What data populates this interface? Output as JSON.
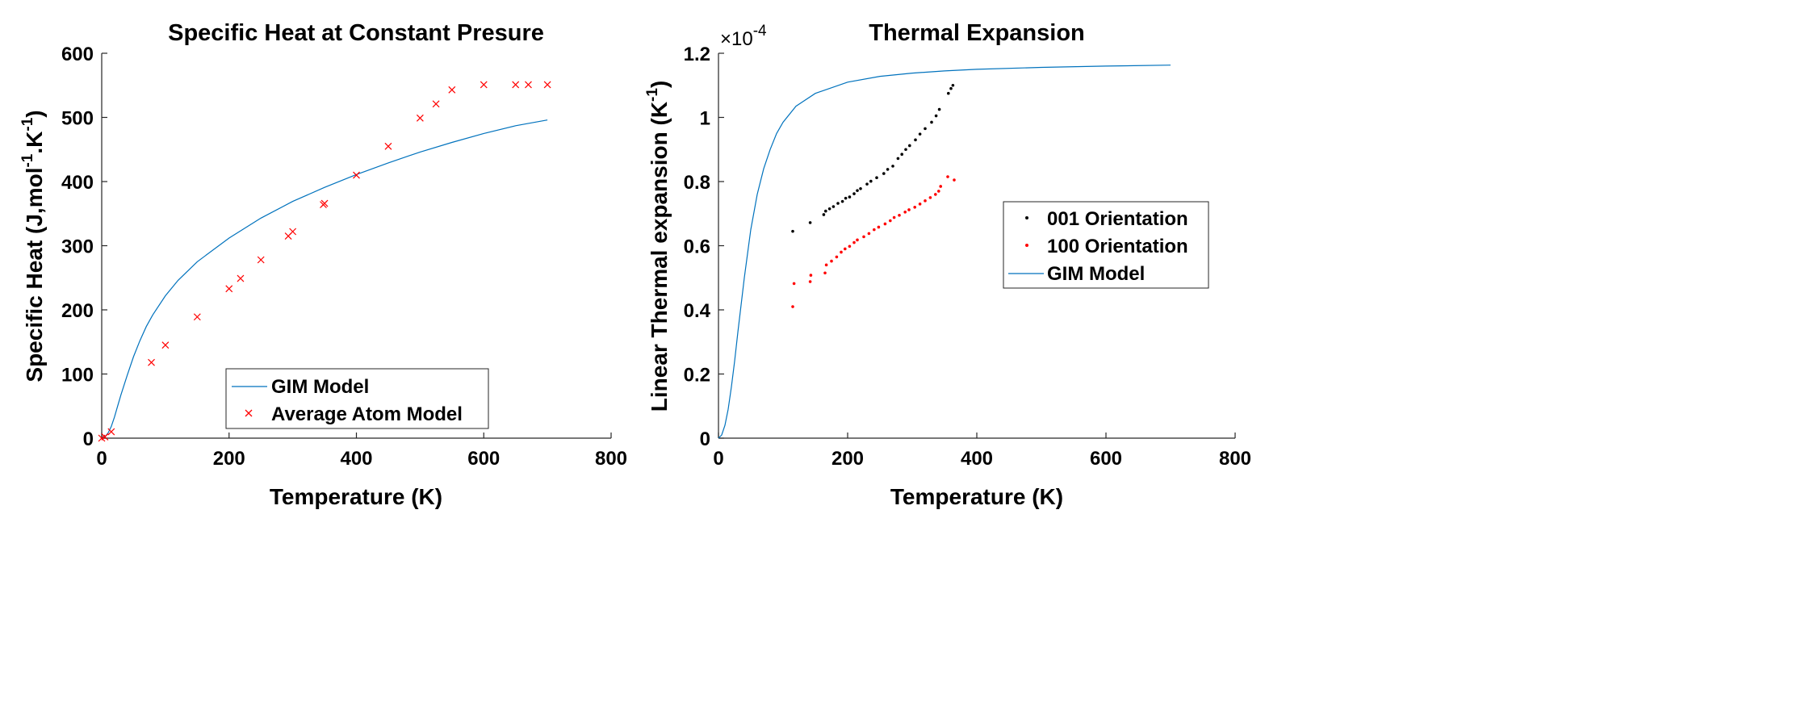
{
  "chart_data": [
    {
      "type": "line",
      "title": "Specific Heat at Constant Presure",
      "xlabel": "Temperature (K)",
      "ylabel": {
        "main": "Specific Heat (J,mol",
        "sup1": "-1",
        "mid": ".K",
        "sup2": "-1",
        "end": ")"
      },
      "xlim": [
        0,
        800
      ],
      "ylim": [
        0,
        600
      ],
      "xticks": [
        0,
        200,
        400,
        600,
        800
      ],
      "yticks": [
        0,
        100,
        200,
        300,
        400,
        500,
        600
      ],
      "grid": false,
      "legend_position": "bottom-right",
      "series": [
        {
          "name": "GIM Model",
          "type": "line",
          "color": "#0072BD",
          "x": [
            0,
            5,
            10,
            15,
            20,
            25,
            30,
            40,
            50,
            60,
            70,
            80,
            100,
            120,
            150,
            200,
            250,
            300,
            350,
            400,
            450,
            500,
            550,
            600,
            650,
            700
          ],
          "y": [
            0,
            2,
            8,
            18,
            33,
            50,
            67,
            98,
            127,
            152,
            174,
            192,
            222,
            246,
            275,
            312,
            343,
            369,
            391,
            411,
            429,
            446,
            461,
            475,
            487,
            496
          ]
        },
        {
          "name": "Average Atom Model",
          "type": "scatter",
          "marker": "x",
          "color": "#FF0000",
          "x": [
            0,
            5,
            15,
            78,
            100,
            150,
            200,
            218,
            250,
            293,
            300,
            348,
            350,
            400,
            450,
            500,
            525,
            550,
            600,
            650,
            670,
            700
          ],
          "y": [
            0,
            2,
            10,
            118,
            145,
            189,
            233,
            249,
            278,
            315,
            322,
            364,
            366,
            410,
            455,
            499,
            521,
            543,
            551,
            551,
            551,
            551
          ]
        }
      ]
    },
    {
      "type": "scatter",
      "title": "Thermal Expansion",
      "xlabel": "Temperature (K)",
      "ylabel": {
        "main": "Linear Thermal expansion (K",
        "sup": "-1",
        "end": ")"
      },
      "exponent": {
        "base": "×10",
        "power": "-4"
      },
      "xlim": [
        0,
        800
      ],
      "ylim": [
        0,
        1.2
      ],
      "xticks": [
        0,
        200,
        400,
        600,
        800
      ],
      "yticks": [
        0,
        0.2,
        0.4,
        0.6,
        0.8,
        1,
        1.2
      ],
      "ytick_labels": [
        "0",
        "0.2",
        "0.4",
        "0.6",
        "0.8",
        "1",
        "1.2"
      ],
      "grid": false,
      "legend_position": "right",
      "series": [
        {
          "name": "001 Orientation",
          "type": "scatter",
          "marker": "dot",
          "color": "#000000",
          "x": [
            115,
            142,
            163,
            166,
            172,
            178,
            185,
            192,
            197,
            203,
            210,
            215,
            220,
            230,
            236,
            245,
            256,
            262,
            270,
            278,
            284,
            290,
            296,
            305,
            312,
            320,
            330,
            337,
            342,
            356,
            360,
            363
          ],
          "y": [
            0.645,
            0.672,
            0.697,
            0.708,
            0.715,
            0.722,
            0.732,
            0.738,
            0.748,
            0.752,
            0.762,
            0.772,
            0.778,
            0.792,
            0.801,
            0.812,
            0.825,
            0.838,
            0.848,
            0.872,
            0.885,
            0.9,
            0.912,
            0.93,
            0.948,
            0.965,
            0.985,
            1.005,
            1.025,
            1.075,
            1.09,
            1.1
          ]
        },
        {
          "name": "100 Orientation",
          "type": "scatter",
          "marker": "dot",
          "color": "#FF0000",
          "x": [
            115,
            117,
            142,
            143,
            165,
            167,
            175,
            183,
            190,
            196,
            203,
            210,
            215,
            225,
            233,
            241,
            248,
            258,
            266,
            272,
            280,
            289,
            295,
            304,
            312,
            320,
            328,
            336,
            341,
            344,
            355,
            365
          ],
          "y": [
            0.41,
            0.482,
            0.488,
            0.508,
            0.515,
            0.54,
            0.552,
            0.565,
            0.58,
            0.59,
            0.598,
            0.61,
            0.618,
            0.628,
            0.638,
            0.65,
            0.658,
            0.668,
            0.678,
            0.688,
            0.695,
            0.705,
            0.712,
            0.72,
            0.73,
            0.74,
            0.75,
            0.76,
            0.77,
            0.785,
            0.815,
            0.805
          ]
        },
        {
          "name": "GIM Model",
          "type": "line",
          "color": "#0072BD",
          "x": [
            0,
            5,
            10,
            15,
            20,
            25,
            30,
            40,
            50,
            60,
            70,
            80,
            90,
            100,
            120,
            150,
            200,
            250,
            300,
            350,
            400,
            500,
            600,
            700
          ],
          "y": [
            0,
            0.01,
            0.04,
            0.09,
            0.16,
            0.24,
            0.33,
            0.5,
            0.65,
            0.76,
            0.84,
            0.9,
            0.95,
            0.985,
            1.035,
            1.075,
            1.11,
            1.128,
            1.138,
            1.145,
            1.15,
            1.156,
            1.16,
            1.163
          ]
        }
      ]
    }
  ]
}
